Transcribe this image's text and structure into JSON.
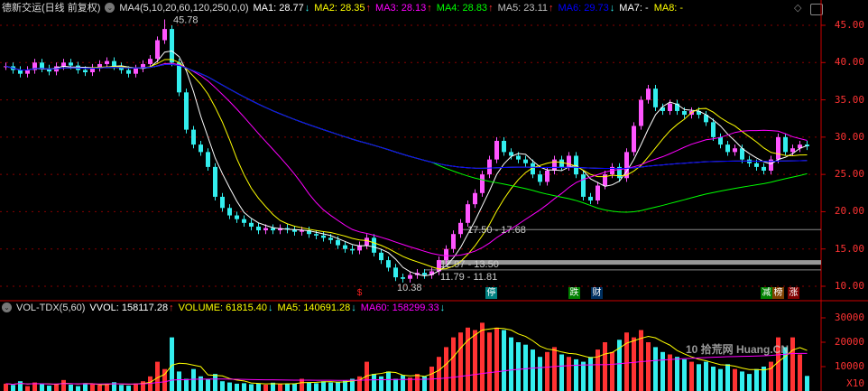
{
  "header": {
    "title": "德新交运(日线 前复权)",
    "indicator": "MA4(5,10,20,60,120,250,0,0)",
    "ma": [
      {
        "label": "MA1: 28.77",
        "color": "#ffffff",
        "arrow": "down"
      },
      {
        "label": "MA2: 28.35",
        "color": "#ffff00",
        "arrow": "up"
      },
      {
        "label": "MA3: 28.13",
        "color": "#ff00ff",
        "arrow": "up"
      },
      {
        "label": "MA4: 28.83",
        "color": "#00ff00",
        "arrow": "up"
      },
      {
        "label": "MA5: 23.11",
        "color": "#c0c0c0",
        "arrow": "up"
      },
      {
        "label": "MA6: 29.73",
        "color": "#0000ff",
        "arrow": "down"
      },
      {
        "label": "MA7: -",
        "color": "#ffffff",
        "arrow": ""
      },
      {
        "label": "MA8: -",
        "color": "#ffff00",
        "arrow": ""
      }
    ]
  },
  "volume_header": {
    "indicator": "VOL-TDX(5,60)",
    "items": [
      {
        "label": "VVOL: 158117.28",
        "color": "#ffffff",
        "arrow": "up"
      },
      {
        "label": "VOLUME: 61815.40",
        "color": "#ffff00",
        "arrow": "down"
      },
      {
        "label": "MA5: 140691.28",
        "color": "#ffff00",
        "arrow": "down"
      },
      {
        "label": "MA60: 158299.33",
        "color": "#ff00ff",
        "arrow": "down"
      }
    ]
  },
  "price_axis": [
    "45.00",
    "40.00",
    "35.00",
    "30.00",
    "25.00",
    "20.00",
    "15.00",
    "10.00"
  ],
  "volume_axis": [
    "30000",
    "20000",
    "10000"
  ],
  "volume_axis_unit": "X10",
  "annotations": [
    "45.78",
    "17.50 - 17.68",
    "12.97 - 13.50",
    "11.79 - 11.81",
    "10.38"
  ],
  "markers": [
    {
      "text": "$",
      "bg": "",
      "color": "#ff2020"
    },
    {
      "text": "停",
      "bg": "#008080",
      "color": "#ffffff"
    },
    {
      "text": "跌",
      "bg": "#008000",
      "color": "#ffffff"
    },
    {
      "text": "财",
      "bg": "#003060",
      "color": "#ffffff"
    },
    {
      "text": "减",
      "bg": "#008000",
      "color": "#ffffff"
    },
    {
      "text": "榜",
      "bg": "#804000",
      "color": "#ffffff"
    },
    {
      "text": "涨",
      "bg": "#800000",
      "color": "#ffffff"
    }
  ],
  "watermark": {
    "text": "10 拾荒网 Huang.CN"
  },
  "chart_data": {
    "type": "candlestick",
    "ylim": [
      10,
      45
    ],
    "vol_ylim": [
      0,
      30000
    ],
    "up_color": "#ff55ff",
    "down_color": "#33eeee",
    "ma_periods": [
      5,
      10,
      20,
      60,
      120,
      250
    ],
    "ma_colors": [
      "#ffffff",
      "#ffff00",
      "#ff00ff",
      "#00ff00",
      "#c0c0c0",
      "#0000ff"
    ],
    "high_marker": 45.78,
    "low_marker": 10.38,
    "close": [
      39.5,
      39,
      38.5,
      39,
      40,
      39.2,
      38.8,
      39.5,
      40,
      39.6,
      39,
      38.7,
      39.3,
      39.8,
      40.2,
      39.5,
      39,
      38.5,
      39.2,
      39.8,
      40.5,
      43,
      44.5,
      40,
      36,
      31,
      29,
      28,
      26,
      22,
      20.5,
      19.5,
      19,
      18.5,
      18,
      17.5,
      17.8,
      17.5,
      17.8,
      17.6,
      17.3,
      17.5,
      17,
      16.8,
      16.5,
      16.2,
      15.5,
      15,
      14.8,
      15.5,
      16.5,
      14.5,
      13.5,
      12.5,
      11.2,
      11,
      11.5,
      11.8,
      11.5,
      12,
      13.5,
      15,
      17,
      18.5,
      21,
      22.5,
      25,
      27,
      29.5,
      28,
      27.5,
      27,
      26.5,
      25,
      24,
      25.5,
      27,
      26,
      27.5,
      25,
      22,
      21.5,
      23.5,
      25,
      26,
      24.5,
      28,
      31.5,
      35,
      36.5,
      34,
      33.5,
      34.5,
      33.5,
      33,
      33.5,
      33,
      32,
      30,
      29,
      28,
      28.5,
      27,
      26.5,
      26,
      25.5,
      27,
      30,
      28,
      28.5,
      29,
      28.77
    ],
    "volume": [
      3000,
      2500,
      4000,
      2000,
      3500,
      2800,
      2200,
      3000,
      4500,
      2600,
      2000,
      3200,
      2800,
      2400,
      3000,
      3600,
      2500,
      2200,
      3100,
      4000,
      6000,
      12000,
      9000,
      22000,
      8000,
      5000,
      9000,
      6000,
      5000,
      7000,
      4000,
      3500,
      3000,
      3200,
      2800,
      3000,
      2600,
      3400,
      2800,
      3000,
      3000,
      5000,
      3600,
      3200,
      4000,
      3500,
      3800,
      4200,
      5000,
      6000,
      12000,
      7000,
      6000,
      8000,
      5000,
      6500,
      5500,
      7000,
      6000,
      10000,
      14000,
      18000,
      22000,
      24000,
      26000,
      25000,
      28000,
      24000,
      26000,
      25000,
      22000,
      20000,
      19000,
      17000,
      14000,
      16000,
      18000,
      15000,
      14000,
      13000,
      12000,
      14000,
      17000,
      20000,
      16000,
      21000,
      24000,
      22000,
      25000,
      20000,
      18000,
      16000,
      15000,
      14000,
      13000,
      12000,
      11000,
      12000,
      10000,
      9000,
      11000,
      9000,
      8000,
      7000,
      9000,
      10000,
      12000,
      22000,
      18000,
      22000,
      15000,
      6182
    ]
  }
}
